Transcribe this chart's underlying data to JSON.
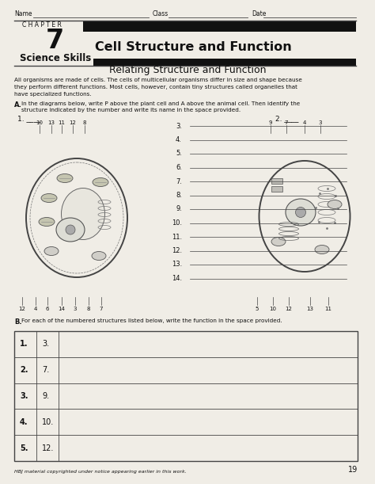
{
  "page_title": "Cell Structure and Function",
  "chapter_label": "C H A P T E R",
  "chapter_number": "7",
  "section_label": "Science Skills",
  "section_title": "Relating Structure and Function",
  "name_label": "Name",
  "class_label": "Class",
  "date_label": "Date",
  "body_text_lines": [
    "All organisms are made of cells. The cells of multicellular organisms differ in size and shape because",
    "they perform different functions. Most cells, however, contain tiny structures called organelles that",
    "have specialized functions."
  ],
  "part_a_label": "A.",
  "part_a_text_lines": [
    "In the diagrams below, write P above the plant cell and A above the animal cell. Then identify the",
    "structure indicated by the number and write its name in the space provided."
  ],
  "part_b_label": "B.",
  "part_b_text": "For each of the numbered structures listed below, write the function in the space provided.",
  "left_numbers_top": [
    "10",
    "13",
    "11",
    "12",
    "8"
  ],
  "left_numbers_bottom": [
    "12",
    "4",
    "6",
    "14",
    "3",
    "8",
    "7"
  ],
  "right_numbers_top": [
    "9",
    "7",
    "4",
    "3"
  ],
  "right_numbers_bottom": [
    "5",
    "10",
    "12",
    "13",
    "11"
  ],
  "answer_lines": [
    "3.",
    "4.",
    "5.",
    "6.",
    "7.",
    "8.",
    "9.",
    "10.",
    "11.",
    "12.",
    "13.",
    "14."
  ],
  "table_rows": [
    [
      "1.",
      "3."
    ],
    [
      "2.",
      "7."
    ],
    [
      "3.",
      "9."
    ],
    [
      "4.",
      "10."
    ],
    [
      "5.",
      "12."
    ]
  ],
  "footer_text": "HBJ material copyrighted under notice appearing earlier in this work.",
  "page_number": "19",
  "bg_color": "#f0ede6",
  "text_color": "#111111",
  "line_color": "#444444",
  "black_bar_color": "#111111"
}
